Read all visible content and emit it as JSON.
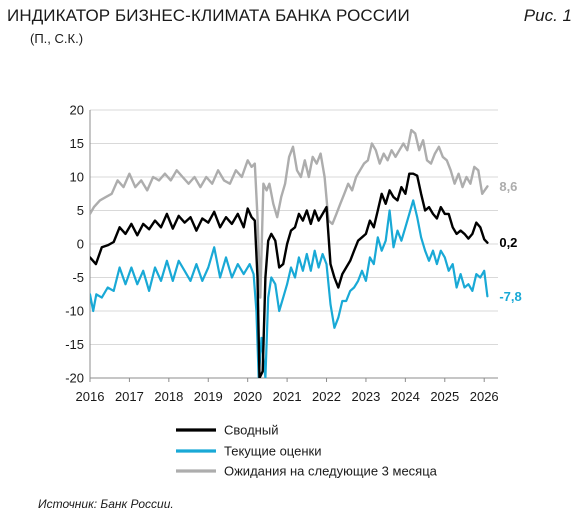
{
  "header": {
    "title": "ИНДИКАТОР БИЗНЕС-КЛИМАТА БАНКА РОССИИ",
    "figure_label": "Рис. 1",
    "subtitle": "(П., С.К.)"
  },
  "footer": {
    "source": "Источник: Банк России."
  },
  "colors": {
    "composite": "#000000",
    "current": "#19a9d6",
    "expectations": "#adadad",
    "grid": "#d9d9d9"
  },
  "chart_data": {
    "type": "line",
    "title": "ИНДИКАТОР БИЗНЕС-КЛИМАТА БАНКА РОССИИ",
    "xlabel": "",
    "ylabel": "",
    "xlim": [
      2016.0,
      2026.35
    ],
    "ylim": [
      -20,
      20
    ],
    "x_ticks": [
      "2016",
      "2017",
      "2018",
      "2019",
      "2020",
      "2021",
      "2022",
      "2023",
      "2024",
      "2025",
      "2026"
    ],
    "y_ticks": [
      "20",
      "15",
      "10",
      "5",
      "0",
      "-5",
      "-10",
      "-15",
      "-20"
    ],
    "grid": "horizontal",
    "legend_position": "bottom",
    "series": [
      {
        "name": "Сводный",
        "color": "#000000",
        "width": 2.4,
        "end_label": "0,2",
        "points": [
          [
            2016.0,
            -2
          ],
          [
            2016.15,
            -3
          ],
          [
            2016.3,
            -0.5
          ],
          [
            2016.45,
            -0.2
          ],
          [
            2016.6,
            0.3
          ],
          [
            2016.75,
            2.5
          ],
          [
            2016.9,
            1.5
          ],
          [
            2017.05,
            3.0
          ],
          [
            2017.2,
            1.3
          ],
          [
            2017.35,
            3.0
          ],
          [
            2017.5,
            2.2
          ],
          [
            2017.65,
            3.5
          ],
          [
            2017.8,
            2.5
          ],
          [
            2017.95,
            4.5
          ],
          [
            2018.1,
            2.3
          ],
          [
            2018.25,
            4.2
          ],
          [
            2018.4,
            3.2
          ],
          [
            2018.55,
            4.0
          ],
          [
            2018.7,
            2.0
          ],
          [
            2018.85,
            3.8
          ],
          [
            2019.0,
            3.2
          ],
          [
            2019.15,
            4.8
          ],
          [
            2019.3,
            2.5
          ],
          [
            2019.45,
            4.0
          ],
          [
            2019.6,
            3.0
          ],
          [
            2019.75,
            4.5
          ],
          [
            2019.9,
            2.5
          ],
          [
            2020.0,
            5.3
          ],
          [
            2020.1,
            4.0
          ],
          [
            2020.18,
            3.5
          ],
          [
            2020.25,
            -5
          ],
          [
            2020.3,
            -20
          ],
          [
            2020.38,
            -19
          ],
          [
            2020.45,
            -5
          ],
          [
            2020.52,
            0.5
          ],
          [
            2020.6,
            1.5
          ],
          [
            2020.7,
            0.5
          ],
          [
            2020.8,
            -3.5
          ],
          [
            2020.9,
            -3.0
          ],
          [
            2021.0,
            0.0
          ],
          [
            2021.1,
            2.0
          ],
          [
            2021.2,
            2.5
          ],
          [
            2021.3,
            4.5
          ],
          [
            2021.4,
            3.5
          ],
          [
            2021.5,
            5.0
          ],
          [
            2021.6,
            3.0
          ],
          [
            2021.7,
            5.0
          ],
          [
            2021.8,
            3.5
          ],
          [
            2021.9,
            4.5
          ],
          [
            2022.0,
            5.5
          ],
          [
            2022.1,
            -3
          ],
          [
            2022.2,
            -5
          ],
          [
            2022.3,
            -6.5
          ],
          [
            2022.4,
            -4.5
          ],
          [
            2022.5,
            -3.5
          ],
          [
            2022.6,
            -2.5
          ],
          [
            2022.7,
            -1.0
          ],
          [
            2022.8,
            0.5
          ],
          [
            2022.9,
            1.0
          ],
          [
            2023.0,
            1.5
          ],
          [
            2023.1,
            3.5
          ],
          [
            2023.2,
            2.5
          ],
          [
            2023.3,
            5.0
          ],
          [
            2023.4,
            7.5
          ],
          [
            2023.5,
            6.0
          ],
          [
            2023.6,
            8.0
          ],
          [
            2023.7,
            7.0
          ],
          [
            2023.8,
            6.5
          ],
          [
            2023.9,
            8.5
          ],
          [
            2024.0,
            7.5
          ],
          [
            2024.1,
            10.5
          ],
          [
            2024.2,
            10.5
          ],
          [
            2024.3,
            10.2
          ],
          [
            2024.4,
            7.5
          ],
          [
            2024.5,
            5.0
          ],
          [
            2024.6,
            5.5
          ],
          [
            2024.7,
            4.5
          ],
          [
            2024.8,
            3.8
          ],
          [
            2024.9,
            5.5
          ],
          [
            2025.0,
            4.5
          ],
          [
            2025.1,
            4.5
          ],
          [
            2025.2,
            2.5
          ],
          [
            2025.3,
            1.5
          ],
          [
            2025.4,
            2.0
          ],
          [
            2025.5,
            1.5
          ],
          [
            2025.6,
            0.8
          ],
          [
            2025.7,
            1.5
          ],
          [
            2025.8,
            3.2
          ],
          [
            2025.9,
            2.5
          ],
          [
            2026.0,
            0.7
          ],
          [
            2026.08,
            0.2
          ]
        ]
      },
      {
        "name": "Текущие оценки",
        "color": "#19a9d6",
        "width": 2.2,
        "end_label": "-7,8",
        "points": [
          [
            2016.0,
            -7.5
          ],
          [
            2016.08,
            -10
          ],
          [
            2016.16,
            -7.5
          ],
          [
            2016.3,
            -8
          ],
          [
            2016.45,
            -6.5
          ],
          [
            2016.6,
            -7
          ],
          [
            2016.75,
            -3.5
          ],
          [
            2016.9,
            -6
          ],
          [
            2017.05,
            -3.5
          ],
          [
            2017.2,
            -6
          ],
          [
            2017.35,
            -4
          ],
          [
            2017.5,
            -7
          ],
          [
            2017.65,
            -3.5
          ],
          [
            2017.8,
            -5.5
          ],
          [
            2017.95,
            -2.5
          ],
          [
            2018.1,
            -5.5
          ],
          [
            2018.25,
            -2.5
          ],
          [
            2018.4,
            -4
          ],
          [
            2018.55,
            -5.5
          ],
          [
            2018.7,
            -3
          ],
          [
            2018.85,
            -5.5
          ],
          [
            2019.0,
            -3.5
          ],
          [
            2019.15,
            -0.5
          ],
          [
            2019.3,
            -5
          ],
          [
            2019.45,
            -2
          ],
          [
            2019.6,
            -5
          ],
          [
            2019.75,
            -3
          ],
          [
            2019.9,
            -4.5
          ],
          [
            2020.05,
            -3
          ],
          [
            2020.15,
            -4.5
          ],
          [
            2020.22,
            -10
          ],
          [
            2020.28,
            -20
          ],
          [
            2020.35,
            -14
          ],
          [
            2020.45,
            -20
          ],
          [
            2020.52,
            -8
          ],
          [
            2020.6,
            -5
          ],
          [
            2020.7,
            -6
          ],
          [
            2020.8,
            -10
          ],
          [
            2020.9,
            -8
          ],
          [
            2021.0,
            -6
          ],
          [
            2021.1,
            -3.5
          ],
          [
            2021.2,
            -5
          ],
          [
            2021.3,
            -2
          ],
          [
            2021.4,
            -4
          ],
          [
            2021.5,
            -1.5
          ],
          [
            2021.6,
            -4
          ],
          [
            2021.7,
            -1
          ],
          [
            2021.8,
            -3.5
          ],
          [
            2021.9,
            -1.5
          ],
          [
            2022.0,
            -3.0
          ],
          [
            2022.1,
            -9
          ],
          [
            2022.2,
            -12.5
          ],
          [
            2022.3,
            -11
          ],
          [
            2022.4,
            -8.5
          ],
          [
            2022.5,
            -8.5
          ],
          [
            2022.6,
            -7
          ],
          [
            2022.7,
            -6.5
          ],
          [
            2022.8,
            -5.5
          ],
          [
            2022.9,
            -4
          ],
          [
            2023.0,
            -5.5
          ],
          [
            2023.1,
            -2
          ],
          [
            2023.2,
            -3
          ],
          [
            2023.3,
            1
          ],
          [
            2023.4,
            -1
          ],
          [
            2023.5,
            0.5
          ],
          [
            2023.6,
            5
          ],
          [
            2023.7,
            -0.5
          ],
          [
            2023.8,
            2
          ],
          [
            2023.9,
            0.5
          ],
          [
            2024.0,
            2.5
          ],
          [
            2024.1,
            4.5
          ],
          [
            2024.2,
            6.5
          ],
          [
            2024.3,
            4
          ],
          [
            2024.4,
            1
          ],
          [
            2024.5,
            -1
          ],
          [
            2024.6,
            -2.5
          ],
          [
            2024.7,
            -1
          ],
          [
            2024.8,
            -3
          ],
          [
            2024.9,
            -1
          ],
          [
            2025.0,
            -2
          ],
          [
            2025.1,
            -4
          ],
          [
            2025.2,
            -3
          ],
          [
            2025.3,
            -6.5
          ],
          [
            2025.4,
            -4.5
          ],
          [
            2025.5,
            -6.5
          ],
          [
            2025.6,
            -6
          ],
          [
            2025.7,
            -7
          ],
          [
            2025.8,
            -4.5
          ],
          [
            2025.9,
            -5
          ],
          [
            2026.0,
            -4
          ],
          [
            2026.08,
            -7.8
          ]
        ]
      },
      {
        "name": "Ожидания на следующие 3 месяца",
        "color": "#adadad",
        "width": 2.4,
        "end_label": "8,6",
        "points": [
          [
            2016.0,
            4.5
          ],
          [
            2016.1,
            5.5
          ],
          [
            2016.25,
            6.5
          ],
          [
            2016.4,
            7
          ],
          [
            2016.55,
            7.5
          ],
          [
            2016.7,
            9.5
          ],
          [
            2016.85,
            8.5
          ],
          [
            2017.0,
            10.5
          ],
          [
            2017.15,
            8.5
          ],
          [
            2017.3,
            9.5
          ],
          [
            2017.45,
            8
          ],
          [
            2017.6,
            10
          ],
          [
            2017.75,
            9.5
          ],
          [
            2017.9,
            10.5
          ],
          [
            2018.05,
            9.5
          ],
          [
            2018.2,
            11
          ],
          [
            2018.35,
            10
          ],
          [
            2018.5,
            9
          ],
          [
            2018.65,
            10
          ],
          [
            2018.8,
            8.5
          ],
          [
            2018.95,
            10
          ],
          [
            2019.1,
            9
          ],
          [
            2019.25,
            11
          ],
          [
            2019.4,
            9.5
          ],
          [
            2019.55,
            9
          ],
          [
            2019.7,
            11
          ],
          [
            2019.85,
            10
          ],
          [
            2020.0,
            12.5
          ],
          [
            2020.1,
            11.5
          ],
          [
            2020.18,
            12.0
          ],
          [
            2020.25,
            4
          ],
          [
            2020.32,
            -8
          ],
          [
            2020.4,
            9
          ],
          [
            2020.48,
            8
          ],
          [
            2020.55,
            9
          ],
          [
            2020.65,
            6
          ],
          [
            2020.75,
            4
          ],
          [
            2020.85,
            7
          ],
          [
            2020.95,
            9
          ],
          [
            2021.05,
            13
          ],
          [
            2021.15,
            14.5
          ],
          [
            2021.25,
            11
          ],
          [
            2021.35,
            10
          ],
          [
            2021.45,
            12.5
          ],
          [
            2021.55,
            10
          ],
          [
            2021.65,
            13
          ],
          [
            2021.75,
            12
          ],
          [
            2021.85,
            13.5
          ],
          [
            2021.95,
            10
          ],
          [
            2022.05,
            3.5
          ],
          [
            2022.15,
            3
          ],
          [
            2022.25,
            4.5
          ],
          [
            2022.35,
            6
          ],
          [
            2022.45,
            7.5
          ],
          [
            2022.55,
            9
          ],
          [
            2022.65,
            8
          ],
          [
            2022.75,
            10
          ],
          [
            2022.85,
            11
          ],
          [
            2022.95,
            12
          ],
          [
            2023.05,
            12.5
          ],
          [
            2023.15,
            15
          ],
          [
            2023.25,
            14
          ],
          [
            2023.35,
            12
          ],
          [
            2023.45,
            13.5
          ],
          [
            2023.55,
            12.5
          ],
          [
            2023.65,
            14
          ],
          [
            2023.75,
            13
          ],
          [
            2023.85,
            14
          ],
          [
            2023.95,
            15
          ],
          [
            2024.05,
            14
          ],
          [
            2024.15,
            17
          ],
          [
            2024.25,
            16.5
          ],
          [
            2024.35,
            14
          ],
          [
            2024.45,
            15.5
          ],
          [
            2024.55,
            12.5
          ],
          [
            2024.65,
            12
          ],
          [
            2024.75,
            13.5
          ],
          [
            2024.85,
            14.5
          ],
          [
            2024.95,
            13
          ],
          [
            2025.05,
            12.5
          ],
          [
            2025.15,
            11
          ],
          [
            2025.25,
            9
          ],
          [
            2025.35,
            10.5
          ],
          [
            2025.45,
            8.5
          ],
          [
            2025.55,
            10
          ],
          [
            2025.65,
            9
          ],
          [
            2025.75,
            11.5
          ],
          [
            2025.85,
            11
          ],
          [
            2025.95,
            7.5
          ],
          [
            2026.08,
            8.6
          ]
        ]
      }
    ]
  }
}
